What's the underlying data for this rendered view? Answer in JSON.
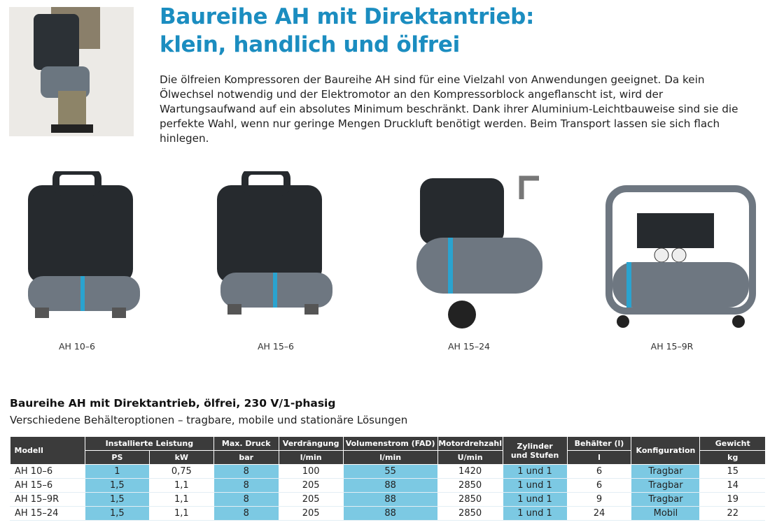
{
  "heading": {
    "line1": "Baureihe AH mit Direktantrieb:",
    "line2": "klein, handlich und ölfrei"
  },
  "intro": "Die ölfreien Kompressoren der Baureihe AH sind für eine Vielzahl von Anwendungen geeignet. Da kein Ölwechsel notwendig und der Elektromotor an den Kompressorblock angeflanscht ist, wird der Wartungsaufwand auf ein absolutes Minimum beschränkt. Dank ihrer Aluminium-Leichtbauweise sind sie die perfekte Wahl, wenn nur geringe Mengen Druckluft benötigt werden. Beim Transport lassen sie sich flach hinlegen.",
  "products": [
    {
      "name": "AH 10–6"
    },
    {
      "name": "AH 15–6"
    },
    {
      "name": "AH 15–24"
    },
    {
      "name": "AH 15–9R"
    }
  ],
  "table": {
    "title": "Baureihe AH mit Direktantrieb, ölfrei, 230 V/1-phasig",
    "subtitle": "Verschiedene Behälteroptionen – tragbare, mobile und stationäre Lösungen",
    "headers": {
      "modell": "Modell",
      "leistung": "Installierte Leistung",
      "ps": "PS",
      "kw": "kW",
      "druck": "Max. Druck",
      "bar": "bar",
      "verdr": "Verdrängung",
      "verdr_u": "l/min",
      "fad": "Volumenstrom (FAD)",
      "fad_u": "l/min",
      "motor": "Motordrehzahl",
      "motor_u": "U/min",
      "zyl1": "Zylinder",
      "zyl2": "und Stufen",
      "beh": "Behälter (l)",
      "beh_u": "l",
      "konf": "Konfiguration",
      "gew": "Gewicht",
      "gew_u": "kg"
    },
    "rows": [
      [
        "AH 10–6",
        "1",
        "0,75",
        "8",
        "100",
        "55",
        "1420",
        "1 und 1",
        "6",
        "Tragbar",
        "15"
      ],
      [
        "AH 15–6",
        "1,5",
        "1,1",
        "8",
        "205",
        "88",
        "2850",
        "1 und 1",
        "6",
        "Tragbar",
        "14"
      ],
      [
        "AH 15–9R",
        "1,5",
        "1,1",
        "8",
        "205",
        "88",
        "2850",
        "1 und 1",
        "9",
        "Tragbar",
        "19"
      ],
      [
        "AH 15–24",
        "1,5",
        "1,1",
        "8",
        "205",
        "88",
        "2850",
        "1 und 1",
        "24",
        "Mobil",
        "22"
      ]
    ]
  }
}
